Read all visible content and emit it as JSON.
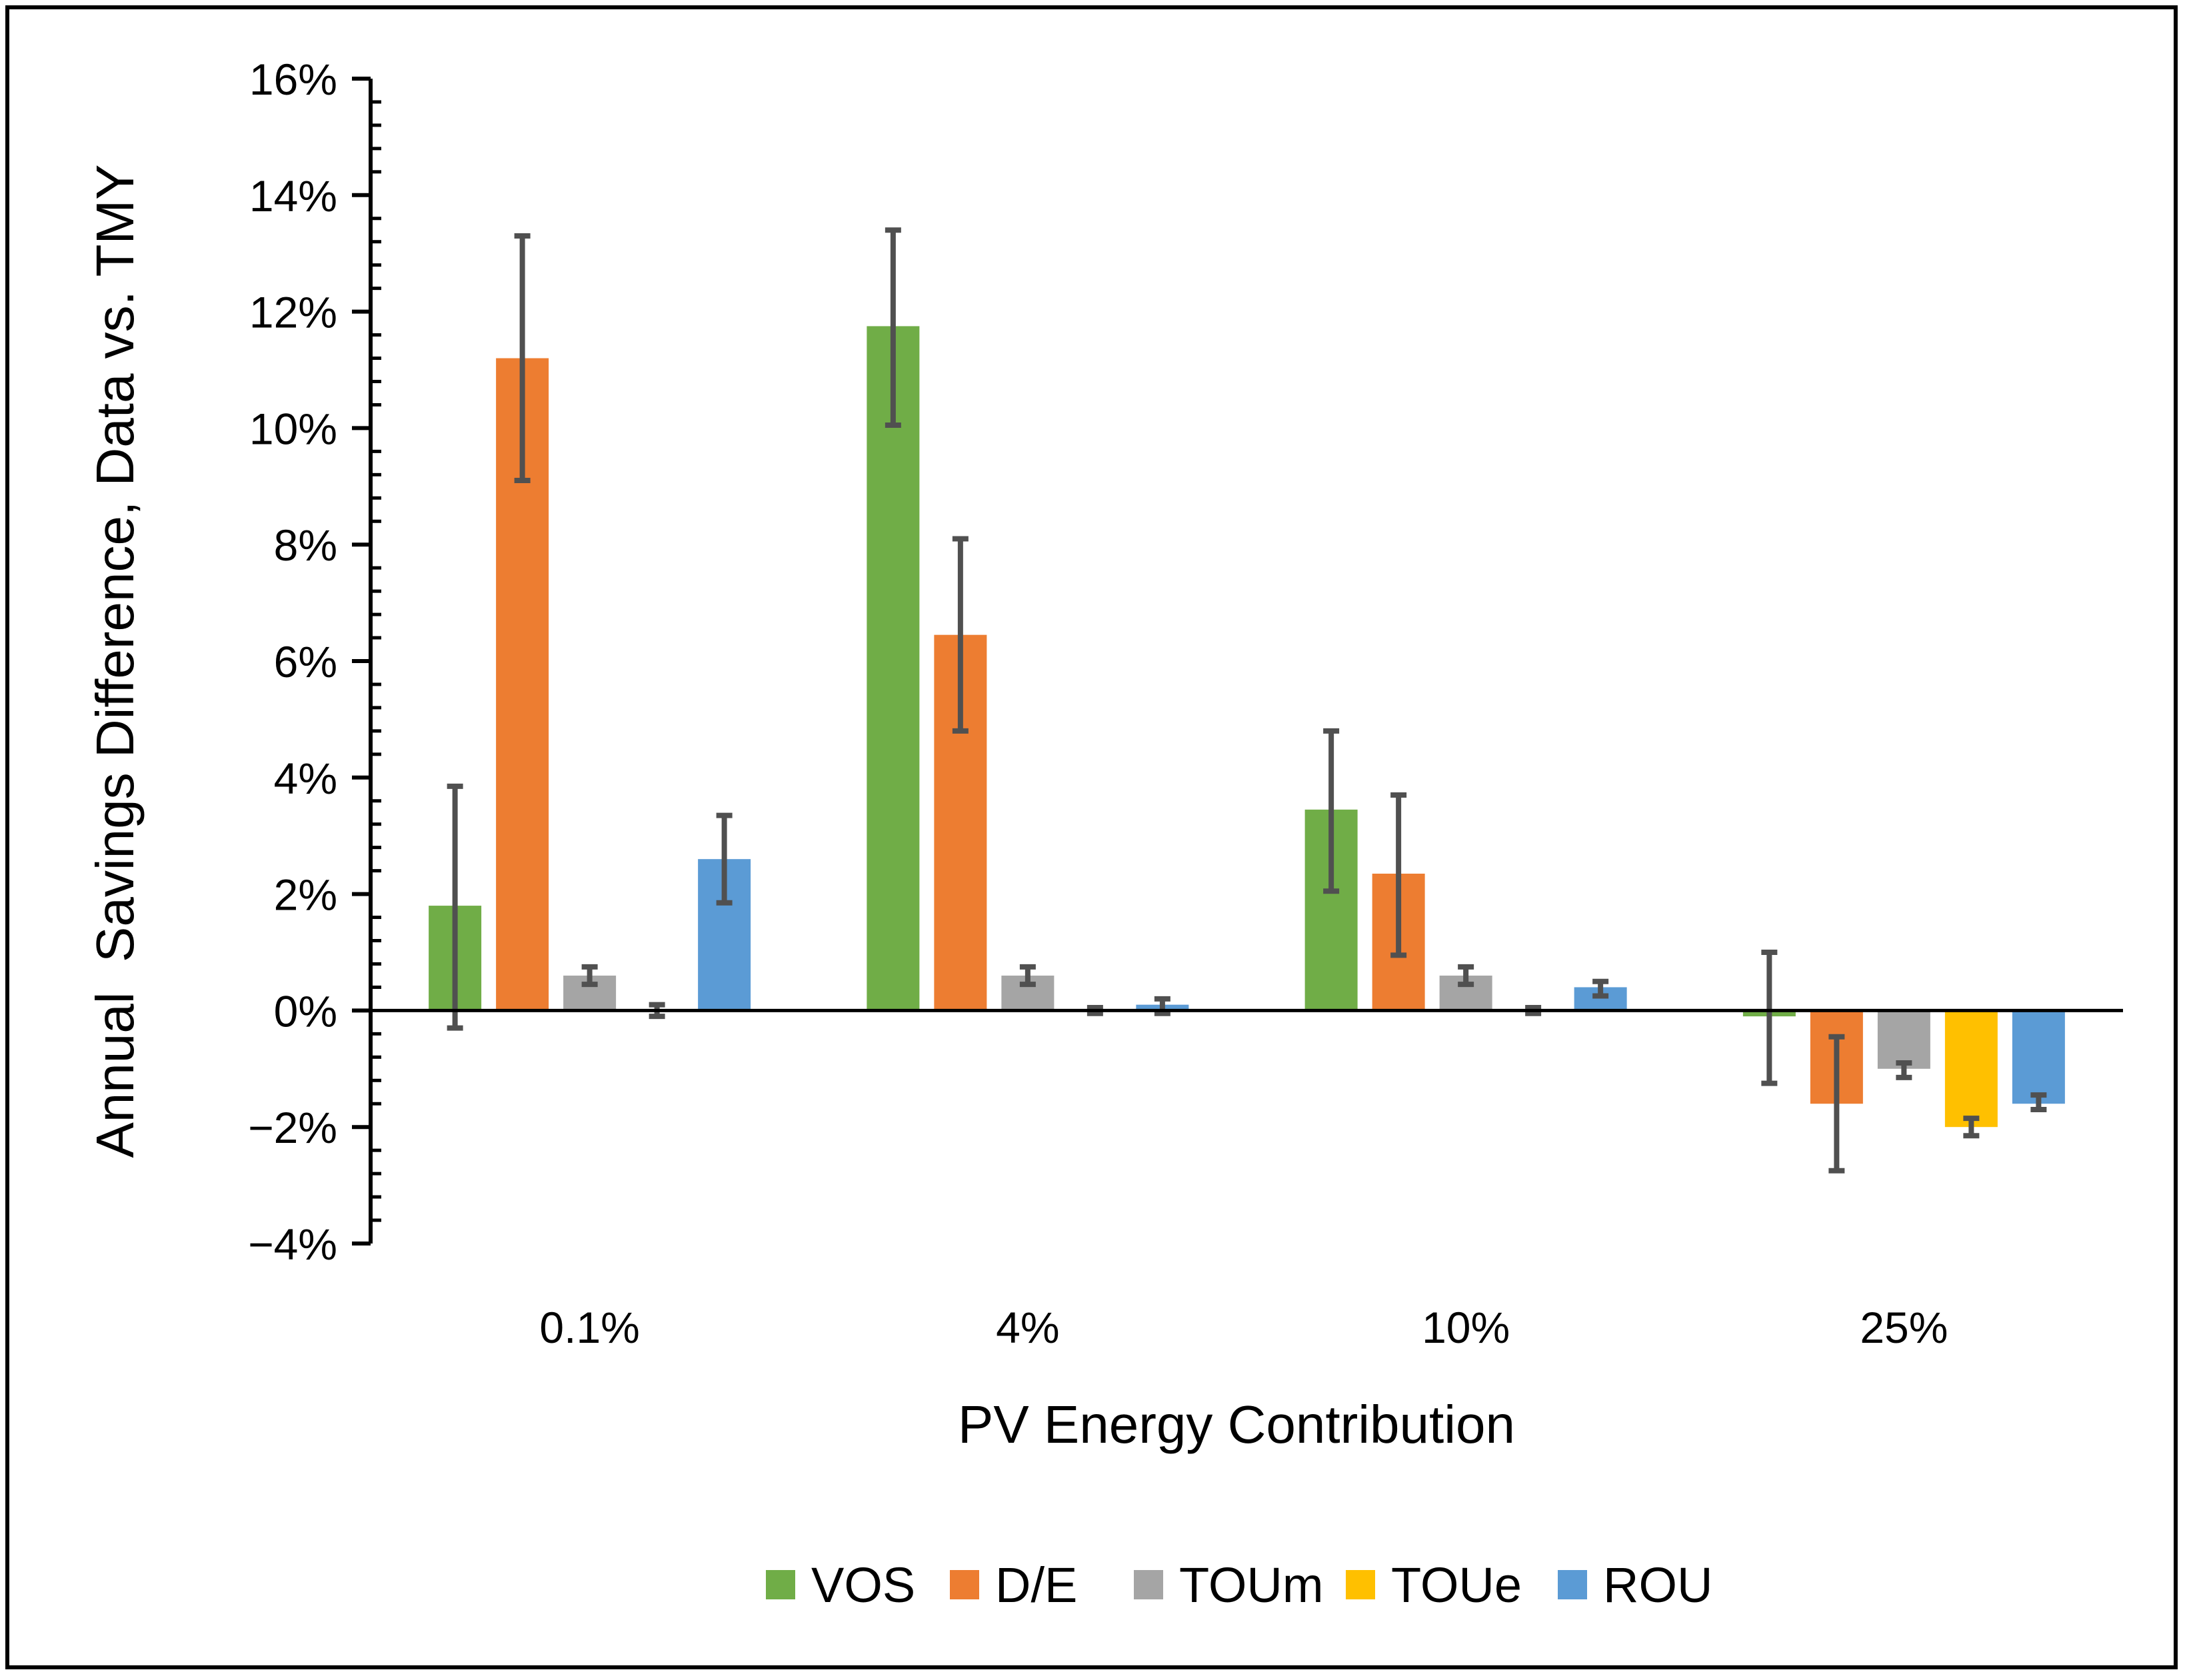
{
  "chart_data": {
    "type": "bar",
    "title": "",
    "xlabel": "PV Energy Contribution",
    "ylabel": "Annual  Savings Difference, Data vs. TMY",
    "categories": [
      "0.1%",
      "4%",
      "10%",
      "25%"
    ],
    "ylim": [
      -4,
      16
    ],
    "yticks": [
      -4,
      -2,
      0,
      2,
      4,
      6,
      8,
      10,
      12,
      14,
      16
    ],
    "ytick_labels": [
      "−4%",
      "−2%",
      "0%",
      "2%",
      "4%",
      "6%",
      "8%",
      "10%",
      "12%",
      "14%",
      "16%"
    ],
    "grid": false,
    "legend_position": "bottom",
    "series": [
      {
        "name": "VOS",
        "color": "#70AD47",
        "values": [
          1.8,
          11.75,
          3.45,
          -0.1
        ],
        "err_low": [
          -0.3,
          10.05,
          2.05,
          -1.25
        ],
        "err_high": [
          3.85,
          13.4,
          4.8,
          1.0
        ]
      },
      {
        "name": "D/E",
        "color": "#ED7D31",
        "values": [
          11.2,
          6.45,
          2.35,
          -1.6
        ],
        "err_low": [
          9.1,
          4.8,
          0.95,
          -2.75
        ],
        "err_high": [
          13.3,
          8.1,
          3.7,
          -0.45
        ]
      },
      {
        "name": "TOUm",
        "color": "#A5A5A5",
        "values": [
          0.6,
          0.6,
          0.6,
          -1.0
        ],
        "err_low": [
          0.45,
          0.45,
          0.45,
          -1.15
        ],
        "err_high": [
          0.75,
          0.75,
          0.75,
          -0.9
        ]
      },
      {
        "name": "TOUe",
        "color": "#FFC000",
        "values": [
          0.0,
          0.0,
          0.0,
          -2.0
        ],
        "err_low": [
          -0.1,
          -0.05,
          -0.05,
          -2.15
        ],
        "err_high": [
          0.1,
          0.05,
          0.05,
          -1.85
        ]
      },
      {
        "name": "ROU",
        "color": "#5B9BD5",
        "values": [
          2.6,
          0.1,
          0.4,
          -1.6
        ],
        "err_low": [
          1.85,
          -0.05,
          0.25,
          -1.7
        ],
        "err_high": [
          3.35,
          0.2,
          0.5,
          -1.45
        ]
      }
    ]
  }
}
